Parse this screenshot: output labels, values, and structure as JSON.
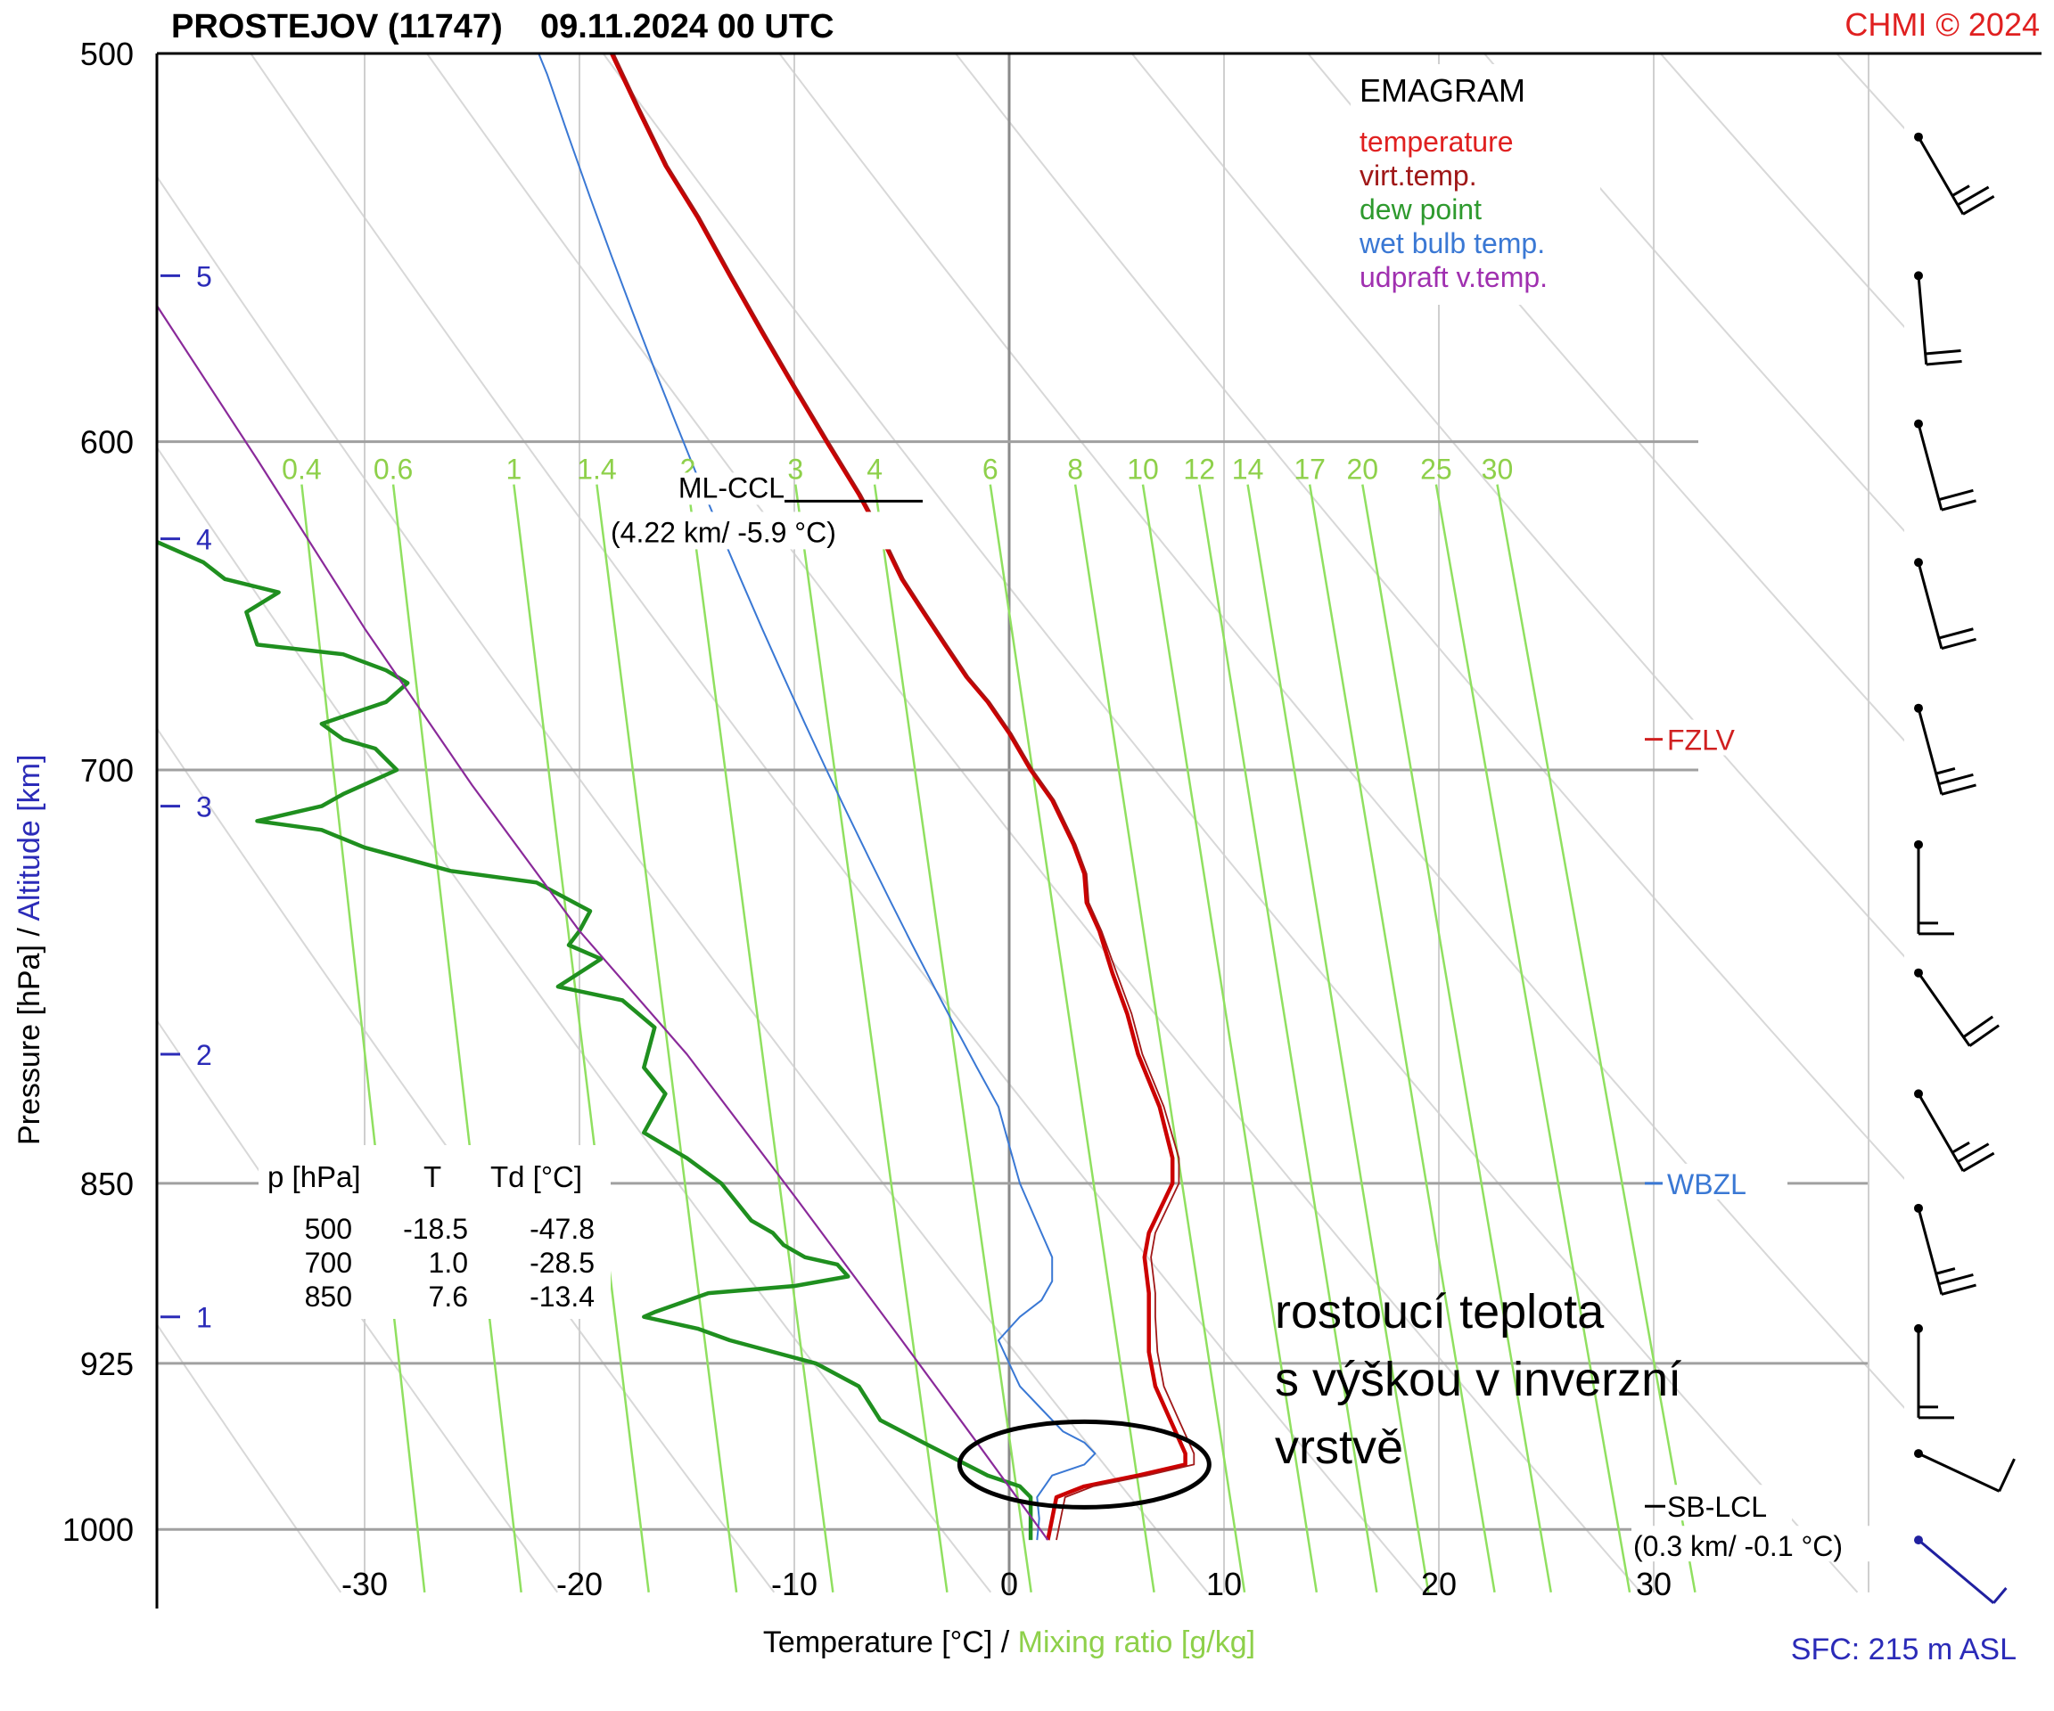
{
  "header": {
    "title": "PROSTEJOV (11747)    09.11.2024 00 UTC",
    "copyright": "CHMI © 2024"
  },
  "chart_data": {
    "type": "line",
    "title": "EMAGRAM",
    "station": "PROSTEJOV (11747)",
    "time": "09.11.2024 00 UTC",
    "xlabel": "Temperature [°C]",
    "xlabel_separator": "/",
    "xlabel2": "Mixing ratio [g/kg]",
    "ylabel": "Pressure [hPa]",
    "ylabel_separator": "/",
    "ylabel2": "Altitude [km]",
    "xlim": [
      -40,
      40
    ],
    "ylim": [
      1030,
      500
    ],
    "y_scale": "log",
    "x_ticks": [
      -30,
      -20,
      -10,
      0,
      10,
      20,
      30
    ],
    "y_ticks": [
      500,
      600,
      700,
      850,
      925,
      1000
    ],
    "altitude_ticks": [
      {
        "km": "5",
        "p": 555
      },
      {
        "km": "4",
        "p": 628
      },
      {
        "km": "3",
        "p": 712
      },
      {
        "km": "2",
        "p": 800
      },
      {
        "km": "1",
        "p": 905
      }
    ],
    "mixing_ratio_labels": [
      "0.4",
      "0.6",
      "1",
      "1.4",
      "2",
      "3",
      "4",
      "6",
      "8",
      "10",
      "12",
      "14",
      "17",
      "20",
      "25",
      "30"
    ],
    "mixing_ratio_values": [
      0.4,
      0.6,
      1,
      1.4,
      2,
      3,
      4,
      6,
      8,
      10,
      12,
      14,
      17,
      20,
      25,
      30
    ],
    "legend": {
      "placement": "top-right",
      "title": "EMAGRAM",
      "items": [
        {
          "label": "temperature",
          "color": "#e02020"
        },
        {
          "label": "virt.temp.",
          "color": "#a01818"
        },
        {
          "label": "dew point",
          "color": "#2e9a2e"
        },
        {
          "label": "wet bulb temp.",
          "color": "#3a78d4"
        },
        {
          "label": "udpraft v.temp.",
          "color": "#a030b0"
        }
      ]
    },
    "series": [
      {
        "name": "temperature",
        "color": "#cc0000",
        "points": [
          [
            1.8,
            1005
          ],
          [
            2.0,
            995
          ],
          [
            2.2,
            985
          ],
          [
            3.5,
            980
          ],
          [
            6.0,
            975
          ],
          [
            8.2,
            970
          ],
          [
            8.2,
            965
          ],
          [
            7.5,
            950
          ],
          [
            6.8,
            935
          ],
          [
            6.5,
            920
          ],
          [
            6.5,
            905
          ],
          [
            6.5,
            895
          ],
          [
            6.3,
            880
          ],
          [
            6.5,
            870
          ],
          [
            7.6,
            850
          ],
          [
            7.6,
            840
          ],
          [
            7.0,
            820
          ],
          [
            6.0,
            800
          ],
          [
            5.5,
            785
          ],
          [
            4.8,
            770
          ],
          [
            4.2,
            755
          ],
          [
            3.6,
            745
          ],
          [
            3.5,
            735
          ],
          [
            3.0,
            725
          ],
          [
            2.0,
            710
          ],
          [
            1.0,
            700
          ],
          [
            0.0,
            688
          ],
          [
            -1.0,
            678
          ],
          [
            -2.0,
            670
          ],
          [
            -3.0,
            660
          ],
          [
            -4.0,
            650
          ],
          [
            -5.0,
            640
          ],
          [
            -5.9,
            628
          ],
          [
            -7.0,
            615
          ],
          [
            -8.5,
            600
          ],
          [
            -10.0,
            585
          ],
          [
            -11.5,
            570
          ],
          [
            -13.0,
            555
          ],
          [
            -14.5,
            540
          ],
          [
            -16.0,
            527
          ],
          [
            -17.3,
            513
          ],
          [
            -18.5,
            500
          ]
        ]
      },
      {
        "name": "virt.temp.",
        "color": "#a01818",
        "points": [
          [
            2.2,
            1005
          ],
          [
            2.4,
            995
          ],
          [
            2.6,
            985
          ],
          [
            3.9,
            980
          ],
          [
            6.4,
            975
          ],
          [
            8.6,
            970
          ],
          [
            8.6,
            965
          ],
          [
            7.9,
            950
          ],
          [
            7.2,
            935
          ],
          [
            6.9,
            920
          ],
          [
            6.8,
            905
          ],
          [
            6.8,
            895
          ],
          [
            6.6,
            880
          ],
          [
            6.8,
            870
          ],
          [
            7.9,
            850
          ],
          [
            7.9,
            840
          ],
          [
            7.2,
            820
          ],
          [
            6.2,
            800
          ],
          [
            5.7,
            785
          ],
          [
            5.0,
            770
          ],
          [
            4.3,
            755
          ],
          [
            3.7,
            745
          ],
          [
            3.6,
            735
          ],
          [
            3.1,
            725
          ],
          [
            2.1,
            710
          ],
          [
            1.1,
            700
          ],
          [
            0.1,
            688
          ],
          [
            -0.9,
            678
          ],
          [
            -1.9,
            670
          ],
          [
            -2.9,
            660
          ],
          [
            -3.9,
            650
          ],
          [
            -4.9,
            640
          ],
          [
            -5.8,
            628
          ],
          [
            -6.9,
            615
          ],
          [
            -8.4,
            600
          ],
          [
            -9.9,
            585
          ],
          [
            -11.4,
            570
          ],
          [
            -12.9,
            555
          ],
          [
            -14.4,
            540
          ],
          [
            -15.9,
            527
          ],
          [
            -17.2,
            513
          ],
          [
            -18.4,
            500
          ]
        ]
      },
      {
        "name": "dew point",
        "color": "#1f8f1f",
        "points": [
          [
            1.0,
            1005
          ],
          [
            1.0,
            995
          ],
          [
            1.0,
            985
          ],
          [
            0.5,
            980
          ],
          [
            -1.0,
            975
          ],
          [
            -2.0,
            970
          ],
          [
            -4.0,
            960
          ],
          [
            -6.0,
            950
          ],
          [
            -7.0,
            935
          ],
          [
            -9.0,
            925
          ],
          [
            -11.0,
            920
          ],
          [
            -13.0,
            915
          ],
          [
            -14.5,
            910
          ],
          [
            -17.0,
            905
          ],
          [
            -16.5,
            903
          ],
          [
            -14.0,
            895
          ],
          [
            -10.0,
            892
          ],
          [
            -7.5,
            888
          ],
          [
            -8.0,
            883
          ],
          [
            -9.5,
            880
          ],
          [
            -10.5,
            875
          ],
          [
            -11.0,
            870
          ],
          [
            -12.0,
            865
          ],
          [
            -13.4,
            850
          ],
          [
            -15.0,
            840
          ],
          [
            -17.0,
            830
          ],
          [
            -16.0,
            815
          ],
          [
            -17.0,
            805
          ],
          [
            -16.5,
            790
          ],
          [
            -18.0,
            780
          ],
          [
            -21.0,
            775
          ],
          [
            -19.0,
            765
          ],
          [
            -20.5,
            760
          ],
          [
            -20.0,
            755
          ],
          [
            -19.5,
            748
          ],
          [
            -22.0,
            738
          ],
          [
            -26.0,
            734
          ],
          [
            -28.0,
            730
          ],
          [
            -30.0,
            726
          ],
          [
            -32.0,
            720
          ],
          [
            -35.0,
            717
          ],
          [
            -32.0,
            712
          ],
          [
            -31.0,
            708
          ],
          [
            -28.5,
            700
          ],
          [
            -29.5,
            693
          ],
          [
            -31.0,
            690
          ],
          [
            -32.0,
            685
          ],
          [
            -29.0,
            678
          ],
          [
            -28.0,
            672
          ],
          [
            -29.0,
            668
          ],
          [
            -31.0,
            663
          ],
          [
            -35.0,
            660
          ],
          [
            -35.5,
            650
          ],
          [
            -34.0,
            644
          ],
          [
            -36.5,
            640
          ],
          [
            -37.5,
            635
          ],
          [
            -40.0,
            628
          ],
          [
            -47.8,
            500
          ]
        ]
      },
      {
        "name": "wet bulb temp.",
        "color": "#3a78d4",
        "points": [
          [
            1.3,
            1005
          ],
          [
            1.4,
            995
          ],
          [
            1.3,
            985
          ],
          [
            2.0,
            975
          ],
          [
            3.5,
            970
          ],
          [
            4.0,
            965
          ],
          [
            3.5,
            960
          ],
          [
            2.5,
            955
          ],
          [
            1.5,
            945
          ],
          [
            0.5,
            935
          ],
          [
            0.0,
            925
          ],
          [
            -0.5,
            915
          ],
          [
            0.5,
            905
          ],
          [
            1.5,
            898
          ],
          [
            2.0,
            890
          ],
          [
            2.0,
            880
          ],
          [
            1.5,
            870
          ],
          [
            0.5,
            850
          ],
          [
            0.0,
            835
          ],
          [
            -0.5,
            820
          ],
          [
            -1.5,
            805
          ],
          [
            -2.5,
            790
          ],
          [
            -3.5,
            775
          ],
          [
            -4.5,
            760
          ],
          [
            -5.5,
            745
          ],
          [
            -6.5,
            730
          ],
          [
            -7.5,
            715
          ],
          [
            -8.5,
            700
          ],
          [
            -9.5,
            685
          ],
          [
            -10.5,
            670
          ],
          [
            -11.5,
            655
          ],
          [
            -12.5,
            640
          ],
          [
            -13.5,
            625
          ],
          [
            -14.5,
            610
          ],
          [
            -15.5,
            595
          ],
          [
            -16.5,
            580
          ],
          [
            -17.5,
            565
          ],
          [
            -18.5,
            550
          ],
          [
            -19.5,
            535
          ],
          [
            -20.5,
            520
          ],
          [
            -21.5,
            505
          ],
          [
            -21.9,
            500
          ]
        ]
      },
      {
        "name": "udpraft v.temp.",
        "color": "#8a2a9a",
        "points": [
          [
            1.8,
            1005
          ],
          [
            -1.5,
            960
          ],
          [
            -5.0,
            915
          ],
          [
            -10.0,
            855
          ],
          [
            -15.0,
            800
          ],
          [
            -20.0,
            755
          ],
          [
            -25.0,
            705
          ],
          [
            -30.0,
            655
          ],
          [
            -35.0,
            605
          ],
          [
            -40.0,
            560
          ],
          [
            -45.0,
            520
          ],
          [
            -48.0,
            500
          ]
        ]
      }
    ],
    "levels": [
      {
        "label": "ML-CCL",
        "value": "(4.22 km/ -5.9 °C)",
        "p": 617,
        "t": -5.9
      },
      {
        "label": "FZLV",
        "p": 690
      },
      {
        "label": "WBZL",
        "p": 850
      },
      {
        "label": "SB-LCL",
        "value": "(0.3 km/ -0.1 °C)",
        "p": 995
      }
    ],
    "level_table": {
      "headers": [
        "p [hPa]",
        "T",
        "Td [°C]"
      ],
      "rows": [
        [
          "500",
          "-18.5",
          "-47.8"
        ],
        [
          "700",
          "1.0",
          "-28.5"
        ],
        [
          "850",
          "7.6",
          "-13.4"
        ]
      ]
    },
    "annotation": {
      "lines": [
        "rostoucí teplota",
        "s výškou v inverzní",
        "vrstvě"
      ],
      "ellipse_center": {
        "t": 3.5,
        "p": 970
      }
    },
    "wind_barbs": [
      {
        "p": 520,
        "dir": 330,
        "speed": 25
      },
      {
        "p": 555,
        "dir": 355,
        "speed": 20
      },
      {
        "p": 595,
        "dir": 345,
        "speed": 20
      },
      {
        "p": 635,
        "dir": 345,
        "speed": 20
      },
      {
        "p": 680,
        "dir": 345,
        "speed": 25
      },
      {
        "p": 725,
        "dir": 0,
        "speed": 15
      },
      {
        "p": 770,
        "dir": 325,
        "speed": 20
      },
      {
        "p": 815,
        "dir": 330,
        "speed": 25
      },
      {
        "p": 860,
        "dir": 345,
        "speed": 25
      },
      {
        "p": 910,
        "dir": 0,
        "speed": 15
      },
      {
        "p": 965,
        "dir": 295,
        "speed": 10
      },
      {
        "p": 1005,
        "dir": 310,
        "speed": 5
      }
    ],
    "surface": "SFC: 215 m ASL"
  },
  "colors": {
    "isobar": "#a0a0a0",
    "isotherm": "#cfcfcf",
    "dry_adiabat": "#d8d8d8",
    "mixing_ratio": "#90e060",
    "mixing_label": "#8ed04a",
    "altitude": "#2b2bb8",
    "title": "#000000",
    "copyright": "#e02020",
    "fzlv": "#d02020",
    "wbzl": "#3a78d4"
  }
}
